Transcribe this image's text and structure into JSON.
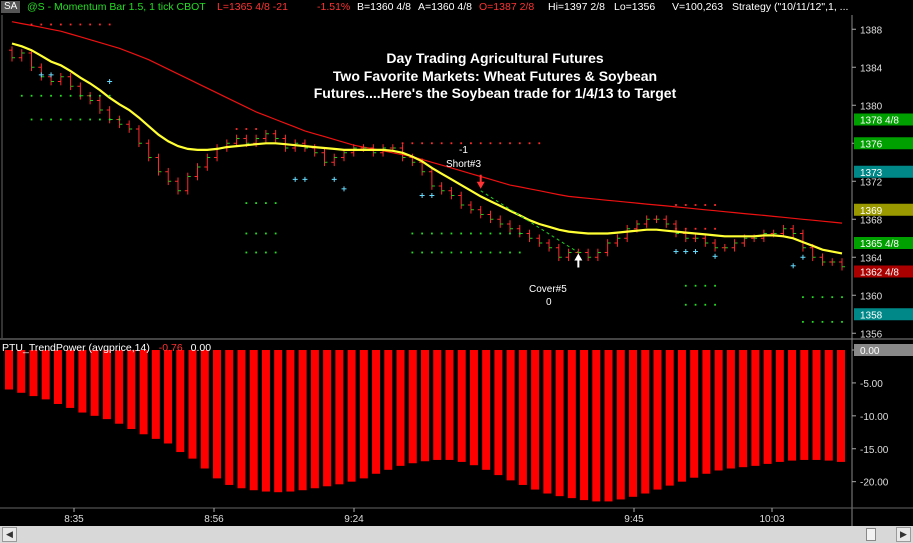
{
  "header": {
    "badge": "SA",
    "symbol": "@S - Momentum Bar 1.5, 1 tick  CBOT",
    "last": "L=1365 4/8  -21",
    "pct": "-1.51%",
    "bid": "B=1360 4/8",
    "ask": "A=1360 4/8",
    "open": "O=1387 2/8",
    "high": "Hi=1397 2/8",
    "low": "Lo=1356",
    "volume": "V=100,263",
    "strategy": "Strategy (\"10/11/12\",1, ..."
  },
  "annotation": {
    "line1": "Day Trading Agricultural Futures",
    "line2": "Two Favorite Markets:  Wheat Futures & Soybean",
    "line3": "Futures....Here's the Soybean trade for 1/4/13 to Target"
  },
  "trades": {
    "short_qty": "-1",
    "short_label": "Short#3",
    "cover_label": "Cover#5",
    "cover_qty": "0"
  },
  "indicator": {
    "label": "PTU_TrendPower (avgprice,14)",
    "value1": "-0.76",
    "value2": "0.00"
  },
  "colors": {
    "price_bar": "#ff2a2a",
    "price_tick": "#22cc22",
    "ma_fast": "#ffff33",
    "ma_slow": "#ee1111",
    "dots_green": "#22dd22",
    "dots_red": "#ff2a2a",
    "plus_marks": "#66ddff",
    "histogram": "#ff0000"
  },
  "chart_data": [
    {
      "type": "line",
      "title": "",
      "x_tick_labels": [
        "8:35",
        "8:56",
        "9:24",
        "9:45",
        "10:03"
      ],
      "y_tick_labels": [
        "1388",
        "1384",
        "1380",
        "1376",
        "1372",
        "1368",
        "1364",
        "1360",
        "1356"
      ],
      "ylim": [
        1355.5,
        1389.5
      ],
      "price_markers": [
        {
          "label": "1378 4/8",
          "value": 1378.5,
          "color": "#00a000"
        },
        {
          "label": "1376",
          "value": 1376,
          "color": "#00a000"
        },
        {
          "label": "1373",
          "value": 1373,
          "color": "#008888"
        },
        {
          "label": "1369",
          "value": 1369,
          "color": "#9a9a00"
        },
        {
          "label": "1365 4/8",
          "value": 1365.5,
          "color": "#00a000"
        },
        {
          "label": "1362 4/8",
          "value": 1362.5,
          "color": "#aa0000"
        },
        {
          "label": "1358",
          "value": 1358,
          "color": "#008888"
        }
      ],
      "closes": [
        1385,
        1385.5,
        1384,
        1383,
        1382.5,
        1383,
        1382,
        1381,
        1380.5,
        1379.5,
        1378.5,
        1378,
        1377.5,
        1376,
        1374.5,
        1373,
        1372,
        1371,
        1372.5,
        1373.5,
        1374.5,
        1375.5,
        1376,
        1376.5,
        1376,
        1376.5,
        1377,
        1376.5,
        1375.5,
        1376,
        1375.5,
        1375,
        1374,
        1374.5,
        1375,
        1375.5,
        1375.5,
        1375,
        1375.5,
        1375.5,
        1374.5,
        1374,
        1373,
        1371.5,
        1371,
        1370.5,
        1369.5,
        1369,
        1368.5,
        1368,
        1367.5,
        1367,
        1366.5,
        1366,
        1365.5,
        1365,
        1364,
        1364.5,
        1364.5,
        1364,
        1364.5,
        1365.5,
        1366,
        1367,
        1367.5,
        1368,
        1368,
        1367.5,
        1366.5,
        1366,
        1366,
        1365.5,
        1365,
        1365,
        1365.5,
        1366,
        1366,
        1366.5,
        1366.5,
        1367,
        1366.5,
        1365,
        1364,
        1363.5,
        1363.5,
        1363
      ],
      "fast_ma": [
        1386.5,
        1386.2,
        1385.8,
        1385.2,
        1384.6,
        1384.2,
        1383.6,
        1382.9,
        1382.3,
        1381.6,
        1380.8,
        1380.1,
        1379.5,
        1378.7,
        1377.8,
        1376.9,
        1376.2,
        1375.7,
        1375.4,
        1375.3,
        1375.3,
        1375.4,
        1375.6,
        1375.7,
        1375.8,
        1375.9,
        1376,
        1376,
        1375.9,
        1375.8,
        1375.7,
        1375.6,
        1375.5,
        1375.4,
        1375.3,
        1375.3,
        1375.3,
        1375.3,
        1375.3,
        1375.2,
        1375,
        1374.6,
        1374.1,
        1373.4,
        1372.8,
        1372.2,
        1371.6,
        1371,
        1370.4,
        1369.9,
        1369.4,
        1368.9,
        1368.4,
        1367.9,
        1367.5,
        1367.2,
        1366.9,
        1366.7,
        1366.6,
        1366.5,
        1366.5,
        1366.5,
        1366.6,
        1366.7,
        1366.8,
        1366.9,
        1366.9,
        1366.8,
        1366.7,
        1366.6,
        1366.5,
        1366.4,
        1366.3,
        1366.2,
        1366.2,
        1366.2,
        1366.2,
        1366.3,
        1366.3,
        1366.2,
        1366,
        1365.6,
        1365.2,
        1364.8,
        1364.6,
        1364.4
      ],
      "slow_ma": [
        1388.8,
        1388.6,
        1388.4,
        1388.2,
        1388,
        1387.8,
        1387.5,
        1387.2,
        1386.9,
        1386.6,
        1386.3,
        1386,
        1385.6,
        1385.2,
        1384.8,
        1384.3,
        1383.8,
        1383.3,
        1382.8,
        1382.3,
        1381.8,
        1381.3,
        1380.8,
        1380.3,
        1379.8,
        1379.3,
        1378.9,
        1378.5,
        1378.1,
        1377.7,
        1377.3,
        1377,
        1376.7,
        1376.4,
        1376.1,
        1375.8,
        1375.6,
        1375.4,
        1375.2,
        1375,
        1374.8,
        1374.6,
        1374.3,
        1374,
        1373.7,
        1373.4,
        1373.1,
        1372.8,
        1372.5,
        1372.2,
        1371.9,
        1371.6,
        1371.4,
        1371.2,
        1371,
        1370.8,
        1370.6,
        1370.4,
        1370.3,
        1370.2,
        1370.1,
        1370,
        1369.9,
        1369.8,
        1369.7,
        1369.6,
        1369.5,
        1369.4,
        1369.3,
        1369.2,
        1369.1,
        1369,
        1368.9,
        1368.8,
        1368.7,
        1368.6,
        1368.5,
        1368.4,
        1368.3,
        1368.2,
        1368.1,
        1368,
        1367.9,
        1367.8,
        1367.7,
        1367.6
      ],
      "trade_markers": [
        {
          "label": "Short#3",
          "bar": 48,
          "price": 1371
        },
        {
          "label": "Cover#5",
          "bar": 58,
          "price": 1364.5
        }
      ]
    },
    {
      "type": "bar",
      "title": "",
      "series_label": "PTU_TrendPower (avgprice,14)",
      "y_tick_labels": [
        "0.00",
        "-5.00",
        "-10.00",
        "-15.00",
        "-20.00"
      ],
      "ylim": [
        -24,
        0
      ],
      "values": [
        -6,
        -6.5,
        -7,
        -7.5,
        -8.2,
        -8.8,
        -9.5,
        -10,
        -10.5,
        -11.2,
        -12,
        -12.8,
        -13.5,
        -14.2,
        -15.5,
        -16.5,
        -18,
        -19.5,
        -20.5,
        -21,
        -21.3,
        -21.5,
        -21.6,
        -21.5,
        -21.3,
        -21,
        -20.7,
        -20.4,
        -20,
        -19.5,
        -18.8,
        -18.2,
        -17.6,
        -17.2,
        -16.9,
        -16.7,
        -16.7,
        -17,
        -17.5,
        -18.2,
        -19,
        -19.8,
        -20.5,
        -21.2,
        -21.8,
        -22.2,
        -22.5,
        -22.8,
        -23,
        -23,
        -22.7,
        -22.3,
        -21.8,
        -21.2,
        -20.6,
        -20,
        -19.4,
        -18.8,
        -18.3,
        -18,
        -17.8,
        -17.6,
        -17.3,
        -17,
        -16.8,
        -16.7,
        -16.7,
        -16.8,
        -17
      ]
    }
  ]
}
